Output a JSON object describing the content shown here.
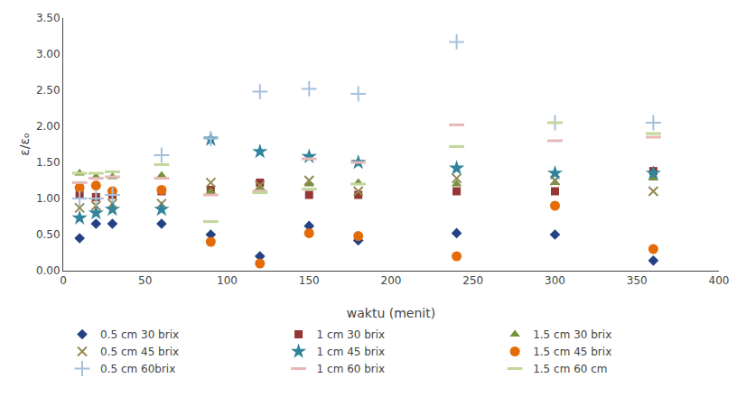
{
  "chart_data": {
    "type": "scatter",
    "xlabel": "waktu (menit)",
    "ylabel": "ε/εₒ",
    "xlim": [
      0,
      400
    ],
    "ylim": [
      0.0,
      3.5
    ],
    "xticks": [
      0,
      50,
      100,
      150,
      200,
      250,
      300,
      350,
      400
    ],
    "yticks": [
      {
        "value": 0.0,
        "label": "0.00"
      },
      {
        "value": 0.5,
        "label": "0.50"
      },
      {
        "value": 1.0,
        "label": "1.00"
      },
      {
        "value": 1.5,
        "label": "1.50"
      },
      {
        "value": 2.0,
        "label": "2.00"
      },
      {
        "value": 2.5,
        "label": "2.50"
      },
      {
        "value": 3.0,
        "label": "3.00"
      },
      {
        "value": 3.5,
        "label": "3.50"
      }
    ],
    "grid": false,
    "legend": "bottom",
    "x": [
      10,
      20,
      30,
      60,
      90,
      120,
      150,
      180,
      240,
      300,
      360
    ],
    "series": [
      {
        "name": "0.5 cm 30 brix",
        "color": "#244185",
        "marker": "diamond",
        "values": [
          0.45,
          0.65,
          0.65,
          0.65,
          0.5,
          0.2,
          0.62,
          0.42,
          0.52,
          0.5,
          0.14
        ]
      },
      {
        "name": "1 cm 30 brix",
        "color": "#943634",
        "marker": "square",
        "values": [
          1.05,
          1.02,
          1.05,
          1.1,
          1.12,
          1.22,
          1.05,
          1.05,
          1.1,
          1.1,
          1.38
        ]
      },
      {
        "name": "1.5 cm 30 brix",
        "color": "#76923C",
        "marker": "triangle",
        "values": [
          1.35,
          1.3,
          1.3,
          1.32,
          1.1,
          1.15,
          1.2,
          1.22,
          1.2,
          1.22,
          1.28
        ]
      },
      {
        "name": "0.5 cm 45 brix",
        "color": "#938953",
        "marker": "x",
        "values": [
          0.87,
          0.9,
          0.93,
          0.93,
          1.22,
          1.18,
          1.25,
          1.1,
          1.28,
          1.25,
          1.1
        ]
      },
      {
        "name": "1 cm 45 brix",
        "color": "#31849B",
        "marker": "star",
        "values": [
          0.73,
          0.8,
          0.85,
          0.85,
          1.82,
          1.65,
          1.58,
          1.5,
          1.42,
          1.35,
          1.35
        ]
      },
      {
        "name": "1.5 cm 45 brix",
        "color": "#E36C09",
        "marker": "circle",
        "values": [
          1.15,
          1.18,
          1.1,
          1.12,
          0.4,
          0.1,
          0.52,
          0.48,
          0.2,
          0.9,
          0.3
        ]
      },
      {
        "name": "0.5 cm 60brix",
        "color": "#A5C0DD",
        "marker": "plus",
        "values": [
          1.0,
          1.0,
          1.05,
          1.6,
          1.83,
          2.48,
          2.52,
          2.45,
          3.17,
          2.05,
          2.05
        ]
      },
      {
        "name": "1 cm 60 brix",
        "color": "#E6B8B7",
        "marker": "hline",
        "values": [
          1.22,
          1.28,
          1.3,
          1.28,
          1.05,
          1.1,
          1.55,
          1.5,
          2.02,
          1.8,
          1.85
        ]
      },
      {
        "name": "1.5 cm 60 cm",
        "color": "#C3D69B",
        "marker": "hline",
        "values": [
          1.35,
          1.35,
          1.37,
          1.47,
          0.68,
          1.08,
          1.13,
          1.2,
          1.72,
          2.05,
          1.9
        ]
      }
    ]
  }
}
